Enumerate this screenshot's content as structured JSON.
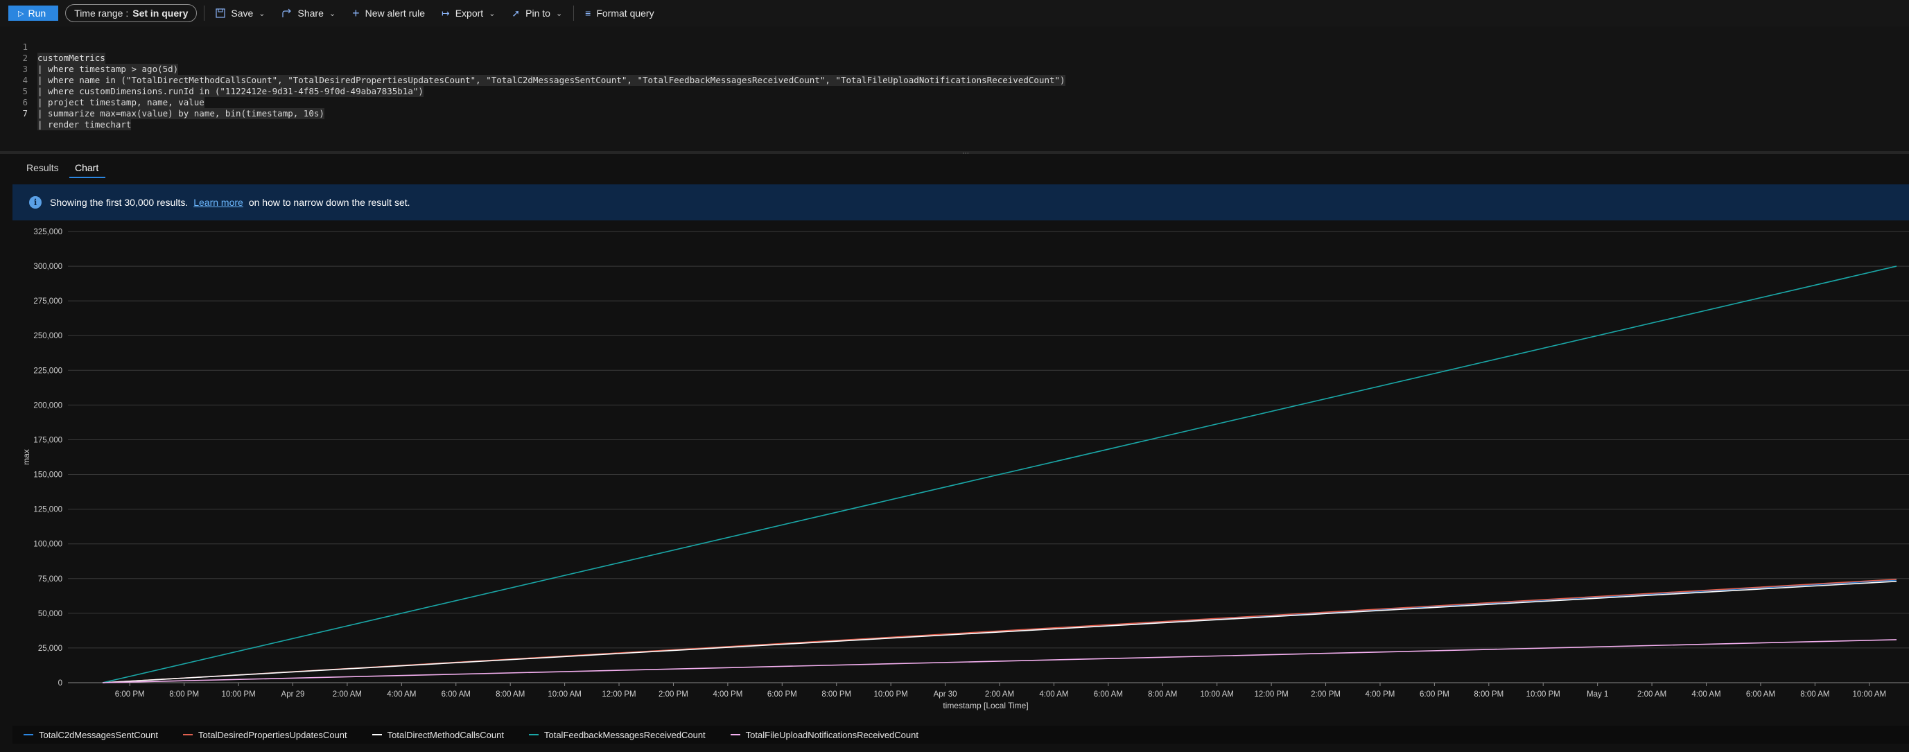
{
  "toolbar": {
    "run_label": "Run",
    "time_range_label": "Time range :",
    "time_range_value": "Set in query",
    "save_label": "Save",
    "share_label": "Share",
    "new_alert_label": "New alert rule",
    "export_label": "Export",
    "pin_label": "Pin to",
    "format_label": "Format query"
  },
  "editor": {
    "lines": [
      {
        "n": "1",
        "text": "customMetrics"
      },
      {
        "n": "2",
        "text": "| where timestamp > ago(5d)"
      },
      {
        "n": "3",
        "text": "| where name in (\"TotalDirectMethodCallsCount\", \"TotalDesiredPropertiesUpdatesCount\", \"TotalC2dMessagesSentCount\", \"TotalFeedbackMessagesReceivedCount\", \"TotalFileUploadNotificationsReceivedCount\")"
      },
      {
        "n": "4",
        "text": "| where customDimensions.runId in (\"1122412e-9d31-4f85-9f0d-49aba7835b1a\")"
      },
      {
        "n": "5",
        "text": "| project timestamp, name, value"
      },
      {
        "n": "6",
        "text": "| summarize max=max(value) by name, bin(timestamp, 10s)"
      },
      {
        "n": "7",
        "text": "| render timechart"
      }
    ]
  },
  "tabs": {
    "results": "Results",
    "chart": "Chart"
  },
  "banner": {
    "before": "Showing the first 30,000 results.",
    "link": "Learn more",
    "after": "on how to narrow down the result set."
  },
  "chart_data": {
    "type": "line",
    "title": "",
    "xlabel": "timestamp [Local Time]",
    "ylabel": "max",
    "ylim": [
      0,
      325000
    ],
    "y_ticks": [
      "0",
      "25,000",
      "50,000",
      "75,000",
      "100,000",
      "125,000",
      "150,000",
      "175,000",
      "200,000",
      "225,000",
      "250,000",
      "275,000",
      "300,000",
      "325,000"
    ],
    "x_ticks": [
      "6:00 PM",
      "8:00 PM",
      "10:00 PM",
      "Apr 29",
      "2:00 AM",
      "4:00 AM",
      "6:00 AM",
      "8:00 AM",
      "10:00 AM",
      "12:00 PM",
      "2:00 PM",
      "4:00 PM",
      "6:00 PM",
      "8:00 PM",
      "10:00 PM",
      "Apr 30",
      "2:00 AM",
      "4:00 AM",
      "6:00 AM",
      "8:00 AM",
      "10:00 AM",
      "12:00 PM",
      "2:00 PM",
      "4:00 PM",
      "6:00 PM",
      "8:00 PM",
      "10:00 PM",
      "May 1",
      "2:00 AM",
      "4:00 AM",
      "6:00 AM",
      "8:00 AM",
      "10:00 AM"
    ],
    "x_range_hours": [
      0,
      66
    ],
    "x_first_tick_hour": 1,
    "series": [
      {
        "name": "TotalC2dMessagesSentCount",
        "color": "#2b86e0",
        "x_hours": [
          0,
          66
        ],
        "values": [
          0,
          74000
        ]
      },
      {
        "name": "TotalDesiredPropertiesUpdatesCount",
        "color": "#e0604f",
        "x_hours": [
          0,
          66
        ],
        "values": [
          0,
          74500
        ]
      },
      {
        "name": "TotalDirectMethodCallsCount",
        "color": "#ffffff",
        "x_hours": [
          0,
          66
        ],
        "values": [
          0,
          73000
        ]
      },
      {
        "name": "TotalFeedbackMessagesReceivedCount",
        "color": "#1aa7a7",
        "x_hours": [
          0,
          66
        ],
        "values": [
          0,
          300000
        ]
      },
      {
        "name": "TotalFileUploadNotificationsReceivedCount",
        "color": "#f4b0f0",
        "x_hours": [
          0,
          66
        ],
        "values": [
          0,
          31000
        ]
      }
    ]
  }
}
